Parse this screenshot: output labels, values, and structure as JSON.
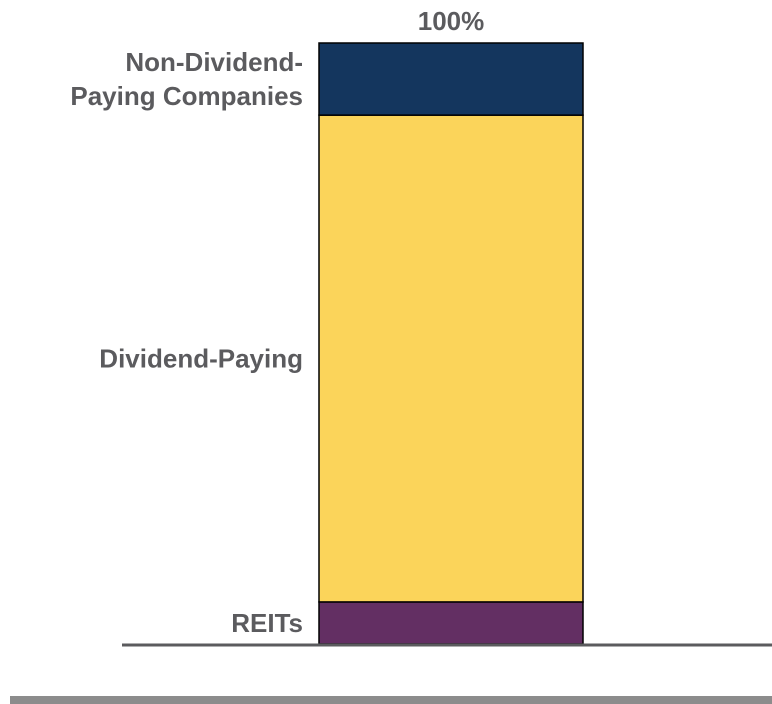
{
  "chart_data": {
    "type": "bar",
    "stacked": true,
    "categories": [
      ""
    ],
    "series": [
      {
        "name": "REITs",
        "values": [
          7
        ],
        "color": "#632f63"
      },
      {
        "name": "Dividend-Paying",
        "values": [
          81
        ],
        "color": "#fbd45a"
      },
      {
        "name": "Non-Dividend-Paying Companies",
        "values": [
          12
        ],
        "color": "#14365e"
      }
    ],
    "total_label": "100%",
    "ylim": [
      0,
      100
    ],
    "grid": false,
    "legend": "none",
    "labels_position": "left-of-bar",
    "colors": {
      "text": "#5b5b5e",
      "baseline": "#5b5b5e",
      "footer_rule": "#8c8c8c",
      "bar_outline": "#000000"
    }
  }
}
